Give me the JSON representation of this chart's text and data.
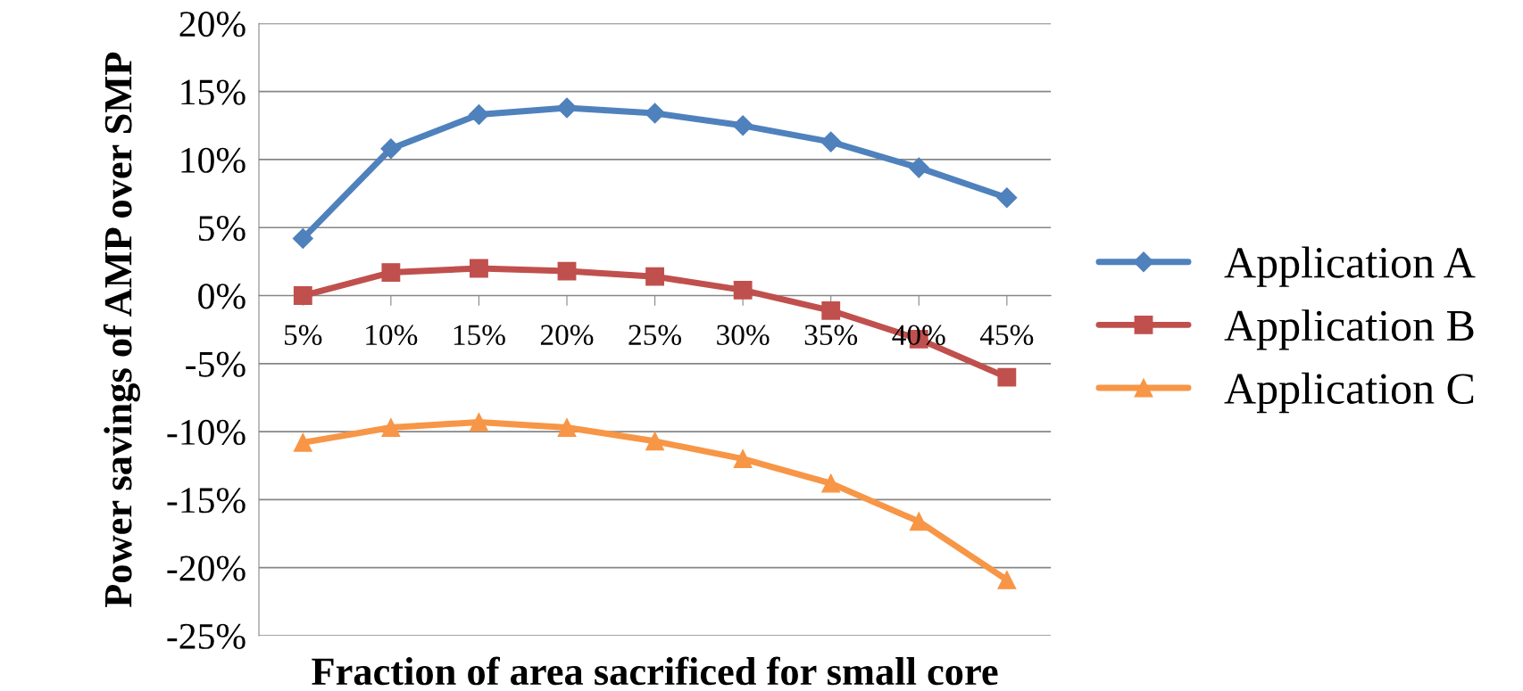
{
  "chart_data": {
    "type": "line",
    "xlabel": "Fraction of area sacrificed for small core",
    "ylabel": "Power savings of AMP over SMP",
    "categories": [
      "5%",
      "10%",
      "15%",
      "20%",
      "25%",
      "30%",
      "35%",
      "40%",
      "45%"
    ],
    "series": [
      {
        "name": "Application A",
        "color": "#4f81bd",
        "marker": "diamond",
        "values": [
          4.2,
          10.8,
          13.3,
          13.8,
          13.4,
          12.5,
          11.3,
          9.4,
          7.2
        ]
      },
      {
        "name": "Application B",
        "color": "#c0504d",
        "marker": "square",
        "values": [
          0.0,
          1.7,
          2.0,
          1.8,
          1.4,
          0.4,
          -1.1,
          -3.2,
          -6.0
        ]
      },
      {
        "name": "Application C",
        "color": "#f79646",
        "marker": "triangle",
        "values": [
          -10.8,
          -9.7,
          -9.3,
          -9.7,
          -10.7,
          -12.0,
          -13.8,
          -16.6,
          -20.9
        ]
      }
    ],
    "ylim": [
      -25,
      20
    ],
    "yticks": [
      {
        "value": -25,
        "label": "-25%"
      },
      {
        "value": -20,
        "label": "-20%"
      },
      {
        "value": -15,
        "label": "-15%"
      },
      {
        "value": -10,
        "label": "-10%"
      },
      {
        "value": -5,
        "label": "-5%"
      },
      {
        "value": 0,
        "label": "0%"
      },
      {
        "value": 5,
        "label": "5%"
      },
      {
        "value": 10,
        "label": "10%"
      },
      {
        "value": 15,
        "label": "15%"
      },
      {
        "value": 20,
        "label": "20%"
      }
    ],
    "grid": "y",
    "legend": "right",
    "line_style": "solid"
  }
}
